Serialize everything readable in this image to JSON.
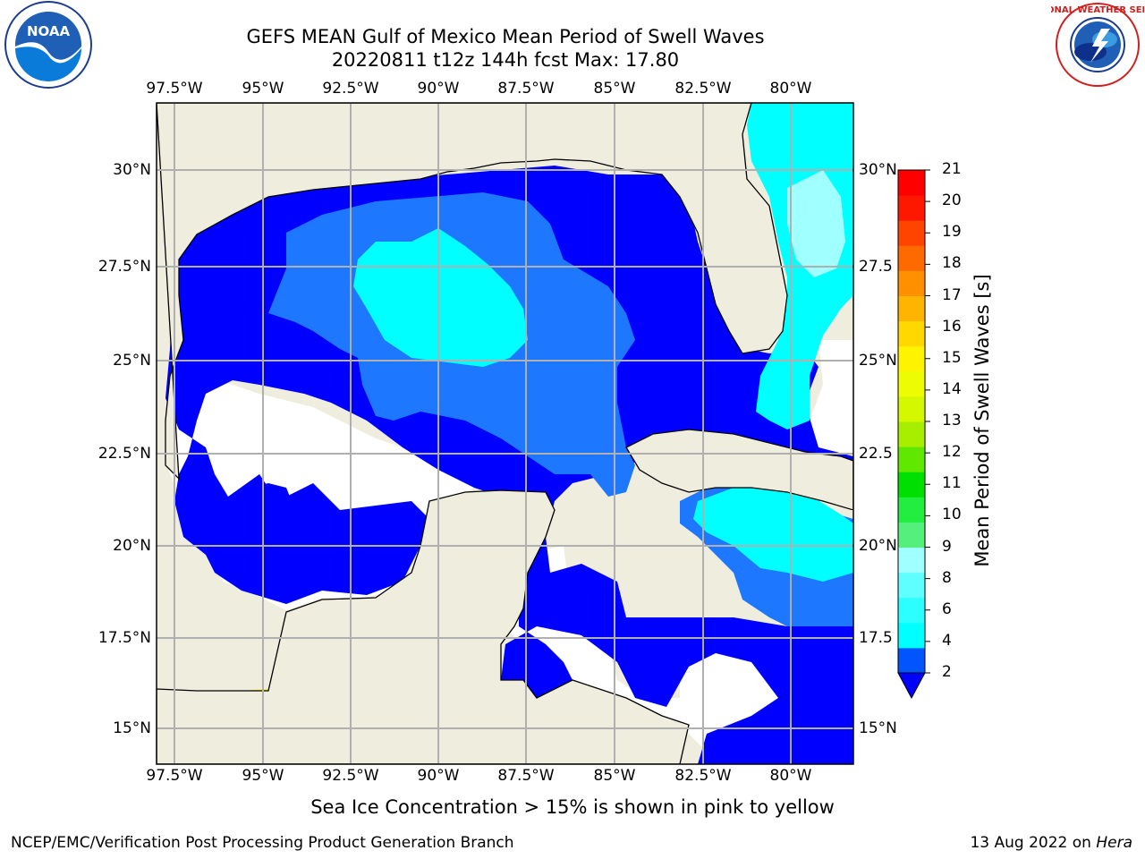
{
  "header": {
    "title_line1": "GEFS MEAN Gulf of Mexico Mean Period of Swell Waves",
    "title_line2": "20220811 t12z 144h fcst   Max: 17.80"
  },
  "map": {
    "region": "Gulf of Mexico",
    "lon_labels": [
      "97.5°W",
      "95°W",
      "92.5°W",
      "90°W",
      "87.5°W",
      "85°W",
      "82.5°W",
      "80°W"
    ],
    "lat_labels": [
      "30°N",
      "27.5°N",
      "25°N",
      "22.5°N",
      "20°N",
      "17.5°N",
      "15°N"
    ],
    "lat_labels_right": [
      "30°N",
      "27.5",
      "25°N",
      "22.5",
      "20°N",
      "17.5",
      "15°N"
    ],
    "land_color": "#efedde",
    "missing_color": "#ffffff"
  },
  "colorbar": {
    "label": "Mean Period of Swell Waves [s]",
    "ticks": [
      "21",
      "20",
      "19",
      "18",
      "17",
      "16",
      "15",
      "14",
      "13",
      "12",
      "11",
      "10",
      "9",
      "8",
      "6",
      "4",
      "2"
    ],
    "colors": [
      "#0055ff",
      "#00ffff",
      "#2cffff",
      "#60ffff",
      "#a0ffff",
      "#55f07c",
      "#22ee40",
      "#00e000",
      "#60e800",
      "#a8ee00",
      "#d4f800",
      "#eefc00",
      "#fff400",
      "#ffd800",
      "#ffb400",
      "#ff9000",
      "#ff6a00",
      "#ff4400",
      "#ff1800",
      "#ff0000"
    ],
    "extend_color": "#0000ff"
  },
  "caption": "Sea Ice Concentration > 15% is shown in pink to yellow",
  "footer": {
    "left": "NCEP/EMC/Verification Post Processing Product Generation Branch",
    "right_text": "13 Aug 2022 on ",
    "right_host": "Hera"
  },
  "logos": {
    "noaa_text": "NOAA",
    "nws_text": "NATIONAL WEATHER SERVICE"
  }
}
